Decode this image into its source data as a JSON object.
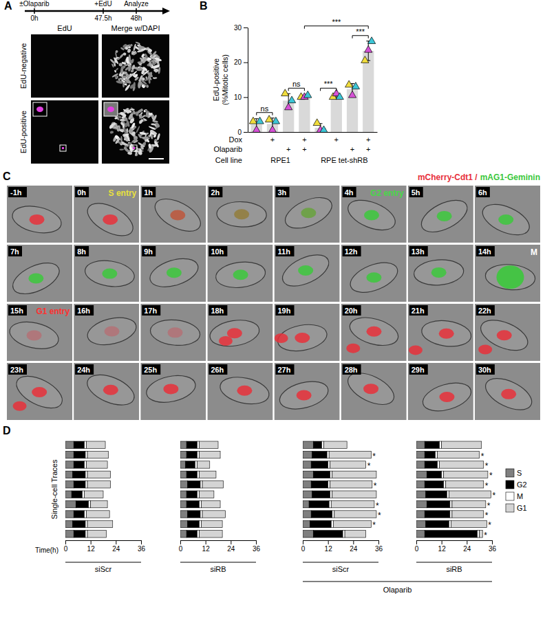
{
  "panel_labels": [
    "A",
    "B",
    "C",
    "D"
  ],
  "panel_a": {
    "timeline": [
      {
        "label": "±Olaparib",
        "time": "0h"
      },
      {
        "label": "+EdU",
        "time": "47.5h"
      },
      {
        "label": "Analyze",
        "time": "48h"
      }
    ],
    "columns": [
      "EdU",
      "Merge w/DAPI"
    ],
    "rows": [
      "EdU-negative",
      "EdU-positive"
    ]
  },
  "chart_data": [
    {
      "type": "bar",
      "ylabel": [
        "EdU-positive",
        "(%Mitotic cells)"
      ],
      "categories": [
        null,
        null,
        null,
        null,
        null,
        null,
        null,
        null
      ],
      "values": [
        2.2,
        2.3,
        9,
        10.2,
        1.2,
        10.3,
        12.3,
        23.3
      ],
      "errors": [
        1.6,
        1.7,
        2,
        0.3,
        1.2,
        0.6,
        1.6,
        2.8
      ],
      "color": "#d9d9d9",
      "ylim": [
        0,
        30
      ],
      "yticks": [
        0,
        10,
        20,
        30
      ],
      "replicates": [
        {
          "color": "#f0dc3c",
          "values": [
            3,
            3.5,
            11,
            10,
            2.5,
            10,
            13.5,
            20.5
          ]
        },
        {
          "color": "#d651d6",
          "values": [
            0.5,
            0.5,
            7,
            10,
            0.5,
            11,
            10.5,
            23.5
          ]
        },
        {
          "color": "#3cc6d6",
          "values": [
            3,
            3,
            9,
            10.5,
            0.5,
            10,
            13,
            26
          ]
        }
      ],
      "condition_rows": [
        {
          "label": "Dox",
          "marks": [
            null,
            "+",
            null,
            "+",
            null,
            "+",
            null,
            "+"
          ]
        },
        {
          "label": "Olaparib",
          "marks": [
            null,
            null,
            "+",
            "+",
            null,
            null,
            "+",
            "+"
          ]
        }
      ],
      "cell_lines": {
        "label": "Cell line",
        "groups": [
          {
            "name": "RPE1",
            "first": 0,
            "last": 3
          },
          {
            "name": "RPE tet-shRB",
            "first": 4,
            "last": 7
          }
        ]
      },
      "significance": [
        {
          "from": 0,
          "to": 1,
          "label": "ns"
        },
        {
          "from": 2,
          "to": 3,
          "label": "ns"
        },
        {
          "from": 4,
          "to": 5,
          "label": "***"
        },
        {
          "from": 6,
          "to": 7,
          "label": "***"
        },
        {
          "from": 3,
          "to": 7,
          "label": "***"
        }
      ]
    },
    {
      "type": "bar",
      "orientation": "horizontal",
      "stacked": true,
      "title": "siScr",
      "xlabel": "Time(h)",
      "ylabel": "Single-cell Traces",
      "xlim": [
        0,
        36
      ],
      "xticks": [
        0,
        12,
        24,
        36
      ],
      "series": [
        {
          "name": "S",
          "color": "#7f7f7f",
          "values": [
            4,
            4,
            4,
            3.5,
            4,
            3,
            5,
            4,
            3.5,
            4
          ]
        },
        {
          "name": "G2",
          "color": "#000000",
          "values": [
            5,
            5.5,
            5,
            6,
            5.5,
            5,
            6,
            5,
            6,
            5.5
          ]
        },
        {
          "name": "M",
          "color": "#ffffff",
          "values": [
            1,
            1,
            1,
            1,
            1,
            1,
            1,
            1,
            1,
            1
          ]
        },
        {
          "name": "G1",
          "color": "#d4d4d4",
          "values": [
            9,
            10,
            10,
            11,
            11,
            9,
            8,
            11,
            12,
            9
          ]
        }
      ]
    },
    {
      "type": "bar",
      "orientation": "horizontal",
      "stacked": true,
      "title": "siRB",
      "xlim": [
        0,
        36
      ],
      "xticks": [
        0,
        12,
        24,
        36
      ],
      "series": [
        {
          "name": "S",
          "color": "#7f7f7f",
          "values": [
            3,
            3,
            2.5,
            3,
            3.5,
            3,
            3,
            3.5,
            3.5,
            3
          ]
        },
        {
          "name": "G2",
          "color": "#000000",
          "values": [
            5,
            5,
            4.5,
            5,
            6,
            5,
            6,
            6,
            5.5,
            5
          ]
        },
        {
          "name": "M",
          "color": "#ffffff",
          "values": [
            1,
            1,
            1,
            1,
            1,
            1,
            1,
            1,
            1,
            1
          ]
        },
        {
          "name": "G1",
          "color": "#d4d4d4",
          "values": [
            9,
            10,
            6,
            8,
            10,
            7,
            9,
            11,
            10,
            11
          ]
        }
      ]
    },
    {
      "type": "bar",
      "orientation": "horizontal",
      "stacked": true,
      "title": "siScr",
      "xlim": [
        0,
        36
      ],
      "xticks": [
        0,
        12,
        24,
        36
      ],
      "series": [
        {
          "name": "S",
          "color": "#7f7f7f",
          "values": [
            5,
            4.5,
            4,
            5,
            4,
            4.5,
            3,
            4,
            3.5,
            5
          ]
        },
        {
          "name": "G2",
          "color": "#000000",
          "values": [
            4,
            7,
            8,
            8,
            8,
            8.5,
            9.5,
            10,
            10,
            14
          ]
        },
        {
          "name": "M",
          "color": "#ffffff",
          "values": [
            1,
            1,
            1,
            1,
            1,
            1,
            1,
            1,
            1,
            1
          ]
        },
        {
          "name": "G1",
          "color": "#d4d4d4",
          "values": [
            11,
            20,
            17,
            21,
            20,
            21,
            20.5,
            20,
            18,
            10
          ]
        }
      ],
      "trace_labels": [
        null,
        "*",
        "*",
        null,
        "*",
        null,
        "*",
        "*",
        "*",
        null
      ]
    },
    {
      "type": "bar",
      "orientation": "horizontal",
      "stacked": true,
      "title": "siRB",
      "xlim": [
        0,
        36
      ],
      "xticks": [
        0,
        12,
        24,
        36
      ],
      "legend": "right",
      "series": [
        {
          "name": "S",
          "color": "#7f7f7f",
          "values": [
            4,
            4,
            4,
            5,
            4,
            4.5,
            5,
            4,
            4.5,
            4
          ]
        },
        {
          "name": "G2",
          "color": "#000000",
          "values": [
            7,
            5,
            6,
            7,
            9,
            10,
            11,
            12,
            11,
            25
          ]
        },
        {
          "name": "M",
          "color": "#ffffff",
          "values": [
            1,
            1,
            1,
            1,
            1,
            1,
            1,
            1,
            1,
            1
          ]
        },
        {
          "name": "G1",
          "color": "#d4d4d4",
          "values": [
            19,
            20,
            21,
            21,
            18,
            20,
            16,
            15,
            17,
            1.5
          ]
        }
      ],
      "trace_labels": [
        null,
        "*",
        "*",
        "*",
        "*",
        "*",
        "*",
        "*",
        "*",
        "*"
      ]
    }
  ],
  "panel_c": {
    "title_parts": [
      {
        "text": "mCherry-Cdt1 /",
        "color": "#e8303a"
      },
      {
        "text": "mAG1-Geminin",
        "color": "#3cc83c"
      }
    ],
    "frames": [
      {
        "time": "-1h"
      },
      {
        "time": "0h",
        "annotation": "S entry",
        "color": "#e8e040"
      },
      {
        "time": "1h"
      },
      {
        "time": "2h"
      },
      {
        "time": "3h"
      },
      {
        "time": "4h",
        "annotation": "G2 entry",
        "color": "#48d848"
      },
      {
        "time": "5h"
      },
      {
        "time": "6h"
      },
      {
        "time": "7h"
      },
      {
        "time": "8h"
      },
      {
        "time": "9h"
      },
      {
        "time": "10h"
      },
      {
        "time": "11h"
      },
      {
        "time": "12h"
      },
      {
        "time": "13h"
      },
      {
        "time": "14h",
        "annotation": "M",
        "color": "#ffffff"
      },
      {
        "time": "15h",
        "annotation": "G1 entry",
        "color": "#ff3030"
      },
      {
        "time": "16h"
      },
      {
        "time": "17h"
      },
      {
        "time": "18h"
      },
      {
        "time": "19h"
      },
      {
        "time": "20h"
      },
      {
        "time": "21h"
      },
      {
        "time": "22h"
      },
      {
        "time": "23h"
      },
      {
        "time": "24h"
      },
      {
        "time": "25h"
      },
      {
        "time": "26h"
      },
      {
        "time": "27h"
      },
      {
        "time": "28h"
      },
      {
        "time": "29h"
      },
      {
        "time": "30h"
      }
    ]
  },
  "panel_d": {
    "group_label": "Olaparib"
  }
}
